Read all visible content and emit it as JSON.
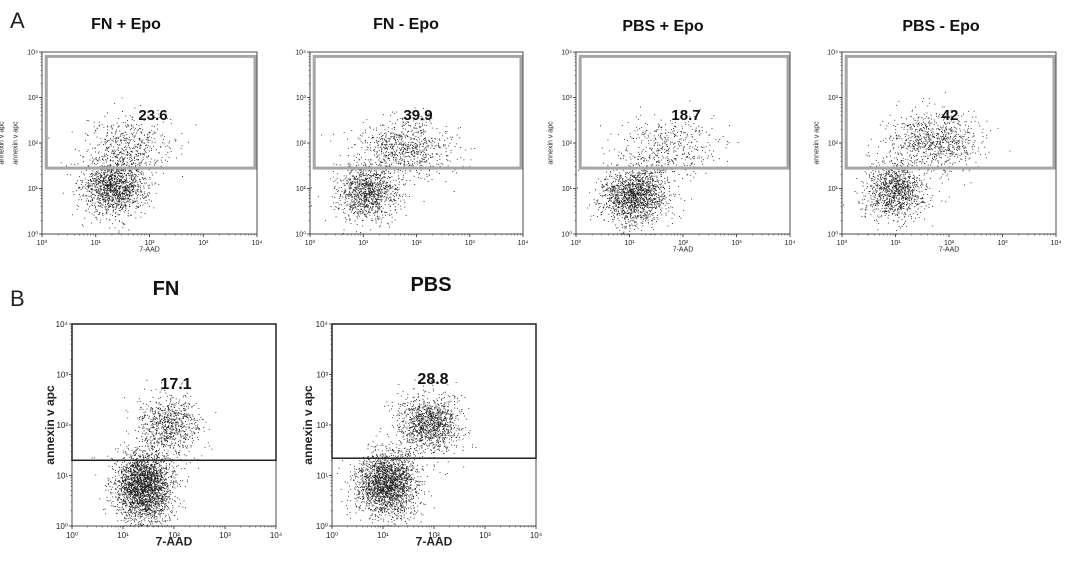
{
  "panel_labels": {
    "a": "A",
    "b": "B"
  },
  "colors": {
    "dots": "#1a1a1a",
    "gate_a": "#a6a6a6",
    "gate_b": "#222222",
    "axis": "#222222"
  },
  "chart_data": [
    {
      "panel": "A",
      "type": "scatter",
      "title": "FN + Epo",
      "xlabel": "7-AAD",
      "ylabel": "annexin v apc",
      "x_scale": "log",
      "y_scale": "log",
      "xlim": [
        1,
        10000
      ],
      "ylim": [
        1,
        10000
      ],
      "xtick_labels": [
        "10⁰",
        "10¹",
        "10²",
        "10³",
        "10⁴"
      ],
      "ytick_labels": [
        "10⁰",
        "10¹",
        "10²",
        "10³",
        "10⁴"
      ],
      "gate": {
        "x_range": [
          1.2,
          10000
        ],
        "y_range": [
          28,
          8000
        ],
        "percent": "23.6"
      },
      "populations": [
        {
          "name": "live",
          "center": [
            22,
            11
          ],
          "spread": [
            0.3,
            0.3
          ],
          "count": 1400
        },
        {
          "name": "apoptotic",
          "center": [
            40,
            90
          ],
          "spread": [
            0.4,
            0.32
          ],
          "count": 500
        }
      ]
    },
    {
      "panel": "A",
      "type": "scatter",
      "title": "FN - Epo",
      "xlabel": "",
      "ylabel": "annexin v apc",
      "x_scale": "log",
      "y_scale": "log",
      "xlim": [
        1,
        10000
      ],
      "ylim": [
        1,
        10000
      ],
      "xtick_labels": [
        "10⁰",
        "10¹",
        "10²",
        "10³",
        "10⁴"
      ],
      "ytick_labels": [
        "10⁰",
        "10¹",
        "10²",
        "10³",
        "10⁴"
      ],
      "gate": {
        "x_range": [
          1.2,
          10000
        ],
        "y_range": [
          28,
          8000
        ],
        "percent": "39.9"
      },
      "populations": [
        {
          "name": "live",
          "center": [
            12,
            8
          ],
          "spread": [
            0.28,
            0.3
          ],
          "count": 1100
        },
        {
          "name": "apoptotic",
          "center": [
            60,
            80
          ],
          "spread": [
            0.45,
            0.35
          ],
          "count": 800
        }
      ]
    },
    {
      "panel": "A",
      "type": "scatter",
      "title": "PBS + Epo",
      "xlabel": "7-AAD",
      "ylabel": "annexin v apc",
      "x_scale": "log",
      "y_scale": "log",
      "xlim": [
        1,
        10000
      ],
      "ylim": [
        1,
        10000
      ],
      "xtick_labels": [
        "10⁰",
        "10¹",
        "10²",
        "10³",
        "10⁴"
      ],
      "ytick_labels": [
        "10⁰",
        "10¹",
        "10²",
        "10³",
        "10⁴"
      ],
      "gate": {
        "x_range": [
          1.2,
          10000
        ],
        "y_range": [
          28,
          8000
        ],
        "percent": "18.7"
      },
      "populations": [
        {
          "name": "live",
          "center": [
            12,
            7
          ],
          "spread": [
            0.32,
            0.32
          ],
          "count": 1600
        },
        {
          "name": "apoptotic",
          "center": [
            50,
            80
          ],
          "spread": [
            0.45,
            0.35
          ],
          "count": 450
        }
      ]
    },
    {
      "panel": "A",
      "type": "scatter",
      "title": "PBS - Epo",
      "xlabel": "7-AAD",
      "ylabel": "annexin v apc",
      "x_scale": "log",
      "y_scale": "log",
      "xlim": [
        1,
        10000
      ],
      "ylim": [
        1,
        10000
      ],
      "xtick_labels": [
        "10⁰",
        "10¹",
        "10²",
        "10³",
        "10⁴"
      ],
      "ytick_labels": [
        "10⁰",
        "10¹",
        "10²",
        "10³",
        "10⁴"
      ],
      "gate": {
        "x_range": [
          1.2,
          10000
        ],
        "y_range": [
          28,
          8000
        ],
        "percent": "42"
      },
      "populations": [
        {
          "name": "live",
          "center": [
            10,
            9
          ],
          "spread": [
            0.28,
            0.32
          ],
          "count": 1100
        },
        {
          "name": "apoptotic",
          "center": [
            50,
            110
          ],
          "spread": [
            0.45,
            0.32
          ],
          "count": 850
        }
      ]
    },
    {
      "panel": "B",
      "type": "scatter",
      "title": "FN",
      "xlabel": "7-AAD",
      "ylabel": "annexin v apc",
      "x_scale": "log",
      "y_scale": "log",
      "xlim": [
        1,
        10000
      ],
      "ylim": [
        1,
        10000
      ],
      "xtick_labels": [
        "10⁰",
        "10¹",
        "10²",
        "10³",
        "10⁴"
      ],
      "ytick_labels": [
        "10⁰",
        "10¹",
        "10²",
        "10³",
        "10⁴"
      ],
      "gate": {
        "x_range": [
          1,
          10000
        ],
        "y_range": [
          20,
          10000
        ],
        "percent": "17.1"
      },
      "populations": [
        {
          "name": "live",
          "center": [
            25,
            6
          ],
          "spread": [
            0.28,
            0.35
          ],
          "count": 2600
        },
        {
          "name": "apoptotic",
          "center": [
            80,
            100
          ],
          "spread": [
            0.3,
            0.3
          ],
          "count": 800
        }
      ]
    },
    {
      "panel": "B",
      "type": "scatter",
      "title": "PBS",
      "xlabel": "7-AAD",
      "ylabel": "annexin v apc",
      "x_scale": "log",
      "y_scale": "log",
      "xlim": [
        1,
        10000
      ],
      "ylim": [
        1,
        10000
      ],
      "xtick_labels": [
        "10⁰",
        "10¹",
        "10²",
        "10³",
        "10⁴"
      ],
      "ytick_labels": [
        "10⁰",
        "10¹",
        "10²",
        "10³",
        "10⁴"
      ],
      "gate": {
        "x_range": [
          1,
          10000
        ],
        "y_range": [
          22,
          10000
        ],
        "percent": "28.8"
      },
      "populations": [
        {
          "name": "live",
          "center": [
            12,
            7
          ],
          "spread": [
            0.3,
            0.32
          ],
          "count": 2200
        },
        {
          "name": "apoptotic",
          "center": [
            80,
            110
          ],
          "spread": [
            0.3,
            0.28
          ],
          "count": 1200
        }
      ]
    }
  ]
}
